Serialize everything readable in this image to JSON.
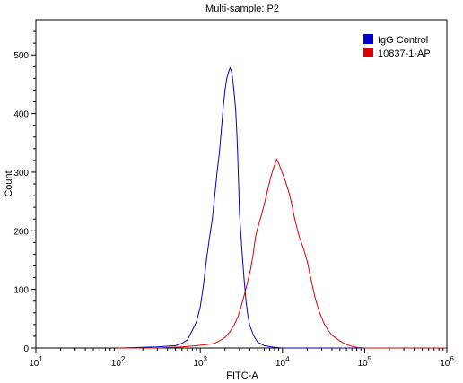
{
  "chart_data": {
    "type": "line",
    "title": "Multi-sample: P2",
    "xlabel": "FITC-A",
    "ylabel": "Count",
    "x_scale": "log",
    "xlim": [
      10,
      1000000
    ],
    "ylim": [
      0,
      560
    ],
    "x_ticks": [
      10,
      100,
      1000,
      10000,
      100000,
      1000000
    ],
    "x_tick_labels": [
      {
        "base": "10",
        "exp": "1"
      },
      {
        "base": "10",
        "exp": "2"
      },
      {
        "base": "10",
        "exp": "3"
      },
      {
        "base": "10",
        "exp": "4"
      },
      {
        "base": "10",
        "exp": "5"
      },
      {
        "base": "10",
        "exp": "6"
      }
    ],
    "y_ticks": [
      0,
      100,
      200,
      300,
      400,
      500
    ],
    "y_tick_labels": [
      "0",
      "100",
      "200",
      "300",
      "400",
      "500"
    ],
    "grid": false,
    "legend_position": "top-right",
    "series": [
      {
        "name": "IgG Control",
        "color": "#0000cc",
        "points": [
          [
            100,
            0
          ],
          [
            300,
            2
          ],
          [
            500,
            4
          ],
          [
            600,
            8
          ],
          [
            700,
            14
          ],
          [
            800,
            30
          ],
          [
            900,
            45
          ],
          [
            1000,
            70
          ],
          [
            1100,
            110
          ],
          [
            1200,
            155
          ],
          [
            1300,
            190
          ],
          [
            1400,
            220
          ],
          [
            1500,
            260
          ],
          [
            1600,
            300
          ],
          [
            1700,
            330
          ],
          [
            1800,
            370
          ],
          [
            1900,
            410
          ],
          [
            2000,
            440
          ],
          [
            2100,
            460
          ],
          [
            2200,
            470
          ],
          [
            2300,
            478
          ],
          [
            2400,
            472
          ],
          [
            2500,
            455
          ],
          [
            2600,
            430
          ],
          [
            2700,
            405
          ],
          [
            2800,
            360
          ],
          [
            2900,
            300
          ],
          [
            3000,
            230
          ],
          [
            3200,
            170
          ],
          [
            3400,
            120
          ],
          [
            3600,
            80
          ],
          [
            3800,
            55
          ],
          [
            4000,
            38
          ],
          [
            4500,
            20
          ],
          [
            5000,
            10
          ],
          [
            6000,
            4
          ],
          [
            8000,
            1
          ],
          [
            10000,
            0
          ],
          [
            100000,
            0
          ],
          [
            1000000,
            0
          ]
        ]
      },
      {
        "name": "10837-1-AP",
        "color": "#dd0000",
        "points": [
          [
            100,
            0
          ],
          [
            300,
            0
          ],
          [
            600,
            2
          ],
          [
            900,
            4
          ],
          [
            1200,
            6
          ],
          [
            1500,
            8
          ],
          [
            1800,
            14
          ],
          [
            2000,
            18
          ],
          [
            2300,
            28
          ],
          [
            2600,
            40
          ],
          [
            2900,
            55
          ],
          [
            3200,
            75
          ],
          [
            3500,
            95
          ],
          [
            3800,
            115
          ],
          [
            4100,
            135
          ],
          [
            4400,
            160
          ],
          [
            4700,
            190
          ],
          [
            5000,
            205
          ],
          [
            5500,
            225
          ],
          [
            6000,
            245
          ],
          [
            6500,
            265
          ],
          [
            7000,
            285
          ],
          [
            7500,
            300
          ],
          [
            8000,
            312
          ],
          [
            8500,
            322
          ],
          [
            9000,
            315
          ],
          [
            10000,
            298
          ],
          [
            11000,
            282
          ],
          [
            12000,
            265
          ],
          [
            13000,
            245
          ],
          [
            14000,
            222
          ],
          [
            15000,
            205
          ],
          [
            16000,
            190
          ],
          [
            18000,
            170
          ],
          [
            20000,
            148
          ],
          [
            22000,
            120
          ],
          [
            25000,
            85
          ],
          [
            28000,
            62
          ],
          [
            32000,
            42
          ],
          [
            36000,
            30
          ],
          [
            40000,
            22
          ],
          [
            50000,
            12
          ],
          [
            60000,
            6
          ],
          [
            70000,
            3
          ],
          [
            80000,
            1
          ],
          [
            100000,
            0
          ],
          [
            1000000,
            0
          ]
        ]
      }
    ]
  }
}
